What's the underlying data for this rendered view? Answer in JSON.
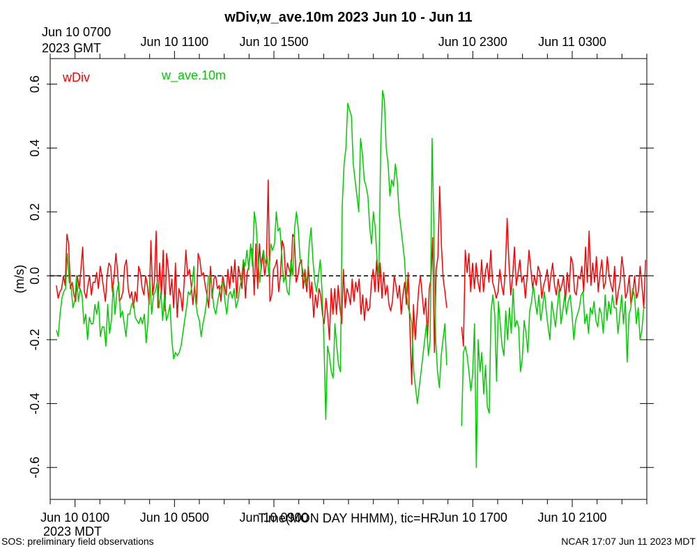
{
  "chart_data": {
    "type": "line",
    "title": "wDiv,w_ave.10m 2023 Jun 10 - Jun 11",
    "xlabel": "Time(MON DAY HHMM), tic=HR",
    "ylabel": "(m/s)",
    "ylim": [
      -0.7,
      0.68
    ],
    "xlim_hours_mdt": [
      -1,
      23
    ],
    "yticks": [
      -0.6,
      -0.4,
      -0.2,
      0.0,
      0.2,
      0.4,
      0.6
    ],
    "ytick_labels": [
      "-0.6",
      "-0.4",
      "-0.2",
      "0.0",
      "0.2",
      "0.4",
      "0.6"
    ],
    "reference_line": 0.0,
    "bottom_axis": {
      "timezone_label": "2023 MDT",
      "first_label": "Jun 10 0100",
      "labels": [
        {
          "hour": 0,
          "text": "Jun 10 0100"
        },
        {
          "hour": 4,
          "text": "Jun 10 0500"
        },
        {
          "hour": 8,
          "text": "Jun 10 0900"
        },
        {
          "hour": 16,
          "text": "Jun 10 1700"
        },
        {
          "hour": 20,
          "text": "Jun 10 2100"
        }
      ]
    },
    "top_axis": {
      "timezone_label": "2023 GMT",
      "labels": [
        {
          "hour": 0,
          "text": "Jun 10 0700"
        },
        {
          "hour": 4,
          "text": "Jun 10 1100"
        },
        {
          "hour": 8,
          "text": "Jun 10 1500"
        },
        {
          "hour": 16,
          "text": "Jun 10 2300"
        },
        {
          "hour": 20,
          "text": "Jun 11 0300"
        }
      ]
    },
    "series": [
      {
        "name": "wDiv",
        "color": "#ff0000",
        "segments": [
          {
            "t_start": -0.75,
            "t_end": 14.95,
            "values": [
              -0.03,
              -0.07,
              -0.05,
              -0.04,
              0.0,
              -0.03,
              0.13,
              0.1,
              -0.04,
              -0.02,
              -0.06,
              -0.08,
              0.0,
              -0.04,
              0.02,
              0.09,
              -0.05,
              -0.07,
              -0.03,
              0.0,
              -0.06,
              -0.02,
              -0.02,
              0.01,
              -0.04,
              0.03,
              0.0,
              -0.04,
              -0.08,
              0.0,
              0.04,
              0.03,
              -0.05,
              0.0,
              0.07,
              0.01,
              -0.08,
              -0.07,
              -0.05,
              0.03,
              0.05,
              -0.04,
              -0.07,
              -0.05,
              -0.1,
              -0.05,
              -0.08,
              0.03,
              0.01,
              -0.04,
              -0.06,
              0.0,
              -0.03,
              -0.09,
              0.11,
              -0.06,
              -0.02,
              0.14,
              -0.1,
              0.04,
              -0.06,
              0.08,
              -0.11,
              0.07,
              0.02,
              -0.06,
              -0.01,
              -0.1,
              0.04,
              -0.13,
              -0.04,
              -0.06,
              -0.11,
              -0.02,
              0.08,
              0.0,
              0.02,
              -0.03,
              -0.09,
              -0.03,
              -0.09,
              0.07,
              0.05,
              0.0,
              0.01,
              -0.03,
              -0.06,
              -0.1,
              0.03,
              -0.07,
              -0.01,
              0.0,
              -0.04,
              -0.03,
              -0.08,
              0.0,
              -0.03,
              -0.06,
              0.02,
              -0.04,
              0.03,
              -0.02,
              0.05,
              -0.07,
              0.03,
              0.0,
              -0.04,
              0.05,
              -0.07,
              0.01,
              0.03,
              0.09,
              0.08,
              -0.06,
              0.1,
              -0.04,
              0.1,
              0.02,
              0.07,
              0.0,
              0.04,
              0.3,
              -0.08,
              -0.06,
              0.02,
              0.03,
              0.05,
              -0.05,
              0.0,
              0.11,
              0.09,
              -0.01,
              0.04,
              0.02,
              0.0,
              0.13,
              0.12,
              -0.02,
              0.0,
              0.04,
              0.05,
              -0.04,
              0.02,
              -0.05,
              0.03,
              -0.07,
              -0.02,
              -0.13,
              -0.06,
              -0.1,
              -0.04,
              -0.06,
              -0.12,
              -0.15,
              -0.07,
              -0.12,
              -0.2,
              -0.04,
              -0.12,
              -0.04,
              -0.12,
              -0.03,
              -0.1,
              -0.15,
              0.02,
              -0.1,
              -0.04,
              -0.06,
              -0.09,
              -0.01,
              -0.08,
              -0.02,
              -0.05,
              -0.01,
              -0.12,
              -0.06,
              -0.14,
              -0.07,
              -0.11,
              -0.1,
              -0.02,
              0.02,
              -0.05,
              0.05,
              -0.05,
              0.04,
              -0.07,
              0.01,
              -0.06,
              -0.03,
              -0.09,
              -0.11,
              -0.08,
              0.0,
              -0.03,
              -0.07,
              -0.03,
              -0.12,
              -0.06,
              -0.02,
              -0.09,
              0.01,
              -0.17,
              -0.34,
              -0.09,
              -0.2,
              -0.12,
              -0.04,
              0.0,
              -0.06,
              -0.12,
              -0.07,
              -0.2,
              -0.04,
              -0.01,
              0.12,
              -0.24,
              0.02,
              0.06,
              0.28,
              0.09,
              -0.01,
              -0.05,
              -0.1
            ]
          },
          {
            "t_start": 15.55,
            "t_end": 22.95,
            "values": [
              -0.16,
              -0.22,
              0.08,
              0.01,
              0.07,
              -0.05,
              0.04,
              -0.04,
              0.04,
              -0.02,
              -0.05,
              0.05,
              -0.05,
              0.01,
              0.04,
              -0.02,
              0.08,
              -0.02,
              -0.04,
              -0.07,
              -0.05,
              0.02,
              -0.03,
              -0.06,
              0.02,
              0.18,
              0.04,
              -0.06,
              0.0,
              0.09,
              -0.03,
              0.01,
              0.05,
              -0.02,
              0.0,
              -0.07,
              0.0,
              0.08,
              0.02,
              -0.04,
              0.0,
              -0.03,
              0.03,
              0.01,
              -0.07,
              -0.03,
              -0.01,
              0.02,
              -0.05,
              0.0,
              0.04,
              -0.03,
              -0.06,
              -0.01,
              -0.05,
              -0.03,
              0.0,
              -0.08,
              0.01,
              -0.05,
              0.06,
              0.04,
              -0.05,
              -0.06,
              0.0,
              -0.01,
              0.03,
              -0.05,
              0.09,
              -0.02,
              0.14,
              -0.03,
              0.04,
              -0.02,
              0.06,
              -0.05,
              0.01,
              0.05,
              -0.04,
              -0.02,
              0.06,
              0.0,
              -0.03,
              -0.05,
              0.03,
              -0.09,
              -0.05,
              -0.02,
              0.06,
              0.01,
              -0.07,
              -0.05,
              0.0,
              -0.09,
              -0.06,
              0.0,
              -0.07,
              -0.05,
              0.03,
              -0.03,
              -0.1,
              0.05
            ]
          }
        ]
      },
      {
        "name": "w_ave.10m",
        "color": "#00cc00",
        "segments": [
          {
            "t_start": -0.75,
            "t_end": 14.95,
            "values": [
              -0.17,
              -0.19,
              -0.12,
              -0.07,
              -0.05,
              -0.04,
              0.07,
              -0.02,
              -0.03,
              -0.1,
              -0.08,
              0.0,
              -0.08,
              -0.04,
              -0.06,
              -0.15,
              -0.12,
              -0.2,
              -0.13,
              -0.15,
              -0.15,
              -0.09,
              -0.12,
              -0.08,
              -0.19,
              -0.16,
              -0.16,
              -0.22,
              -0.09,
              -0.18,
              -0.14,
              -0.03,
              -0.12,
              -0.05,
              -0.02,
              -0.13,
              -0.11,
              -0.15,
              -0.19,
              -0.12,
              -0.12,
              -0.09,
              -0.08,
              -0.13,
              -0.14,
              -0.15,
              -0.13,
              -0.15,
              -0.12,
              -0.21,
              -0.14,
              -0.01,
              -0.12,
              -0.06,
              -0.05,
              -0.02,
              -0.1,
              -0.05,
              -0.14,
              -0.06,
              -0.14,
              -0.12,
              -0.09,
              -0.2,
              -0.26,
              -0.24,
              -0.25,
              -0.24,
              -0.22,
              -0.18,
              -0.14,
              -0.1,
              -0.05,
              -0.06,
              -0.03,
              0.03,
              -0.08,
              -0.12,
              -0.14,
              -0.19,
              -0.15,
              -0.12,
              -0.08,
              0.0,
              0.0,
              -0.05,
              -0.1,
              -0.12,
              -0.08,
              -0.05,
              -0.03,
              -0.02,
              -0.08,
              -0.12,
              -0.06,
              -0.05,
              -0.07,
              -0.04,
              -0.1,
              -0.08,
              -0.04,
              -0.01,
              0.05,
              0.03,
              0.08,
              0.02,
              0.1,
              0.03,
              0.2,
              0.16,
              0.06,
              -0.02,
              0.05,
              0.08,
              0.04,
              0.06,
              0.0,
              0.1,
              0.08,
              0.1,
              0.2,
              0.14,
              0.15,
              0.06,
              -0.02,
              0.0,
              -0.05,
              -0.06,
              0.05,
              0.0,
              0.15,
              0.2,
              0.15,
              0.05,
              0.03,
              0.0,
              -0.03,
              0.0,
              0.1,
              0.15,
              0.05,
              -0.02,
              -0.05,
              0.0,
              0.05,
              -0.05,
              -0.2,
              -0.45,
              -0.22,
              -0.25,
              -0.3,
              -0.32,
              -0.15,
              -0.22,
              -0.28,
              -0.3,
              0.22,
              0.35,
              0.4,
              0.54,
              0.52,
              0.5,
              0.35,
              0.3,
              0.25,
              0.2,
              0.43,
              0.38,
              0.3,
              0.28,
              0.25,
              0.15,
              0.1,
              0.2,
              0.15,
              0.05,
              0.0,
              0.4,
              0.58,
              0.55,
              0.4,
              0.35,
              0.25,
              0.3,
              0.28,
              0.35,
              0.3,
              0.2,
              0.15,
              0.1,
              0.05,
              -0.05,
              -0.1,
              -0.12,
              -0.15,
              -0.3,
              -0.35,
              -0.4,
              -0.35,
              -0.3,
              -0.25,
              -0.2,
              -0.15,
              -0.25,
              -0.2,
              0.43,
              0.15,
              -0.2,
              -0.3,
              -0.35,
              -0.25,
              -0.2,
              -0.15,
              -0.28
            ]
          },
          {
            "t_start": 15.55,
            "t_end": 22.95,
            "values": [
              -0.47,
              -0.24,
              -0.22,
              -0.25,
              -0.3,
              -0.36,
              -0.31,
              -0.15,
              -0.6,
              -0.2,
              -0.3,
              -0.24,
              -0.37,
              -0.28,
              -0.41,
              -0.43,
              -0.11,
              -0.06,
              -0.12,
              -0.33,
              -0.08,
              -0.15,
              -0.22,
              -0.25,
              -0.11,
              -0.2,
              -0.1,
              -0.18,
              -0.04,
              -0.16,
              -0.14,
              -0.16,
              -0.3,
              -0.26,
              -0.14,
              -0.18,
              -0.24,
              -0.11,
              -0.08,
              -0.03,
              -0.08,
              -0.12,
              -0.06,
              -0.14,
              -0.1,
              -0.05,
              -0.11,
              -0.16,
              -0.2,
              -0.08,
              -0.12,
              -0.16,
              -0.1,
              -0.04,
              -0.15,
              -0.11,
              -0.06,
              -0.12,
              -0.08,
              -0.06,
              -0.12,
              -0.2,
              -0.14,
              -0.12,
              -0.1,
              -0.06,
              -0.05,
              -0.15,
              -0.12,
              -0.18,
              -0.1,
              -0.12,
              -0.08,
              -0.14,
              -0.16,
              -0.1,
              -0.12,
              -0.18,
              -0.06,
              -0.14,
              -0.08,
              -0.12,
              -0.06,
              -0.1,
              -0.1,
              -0.18,
              -0.12,
              -0.06,
              -0.15,
              -0.08,
              -0.27,
              -0.12,
              -0.1,
              -0.04,
              -0.06,
              -0.15,
              -0.1,
              -0.2,
              -0.17,
              -0.1,
              -0.1
            ]
          }
        ]
      }
    ]
  },
  "footer": {
    "left": "SOS: preliminary field observations",
    "right": "NCAR 17:07 Jun 11 2023 MDT"
  }
}
